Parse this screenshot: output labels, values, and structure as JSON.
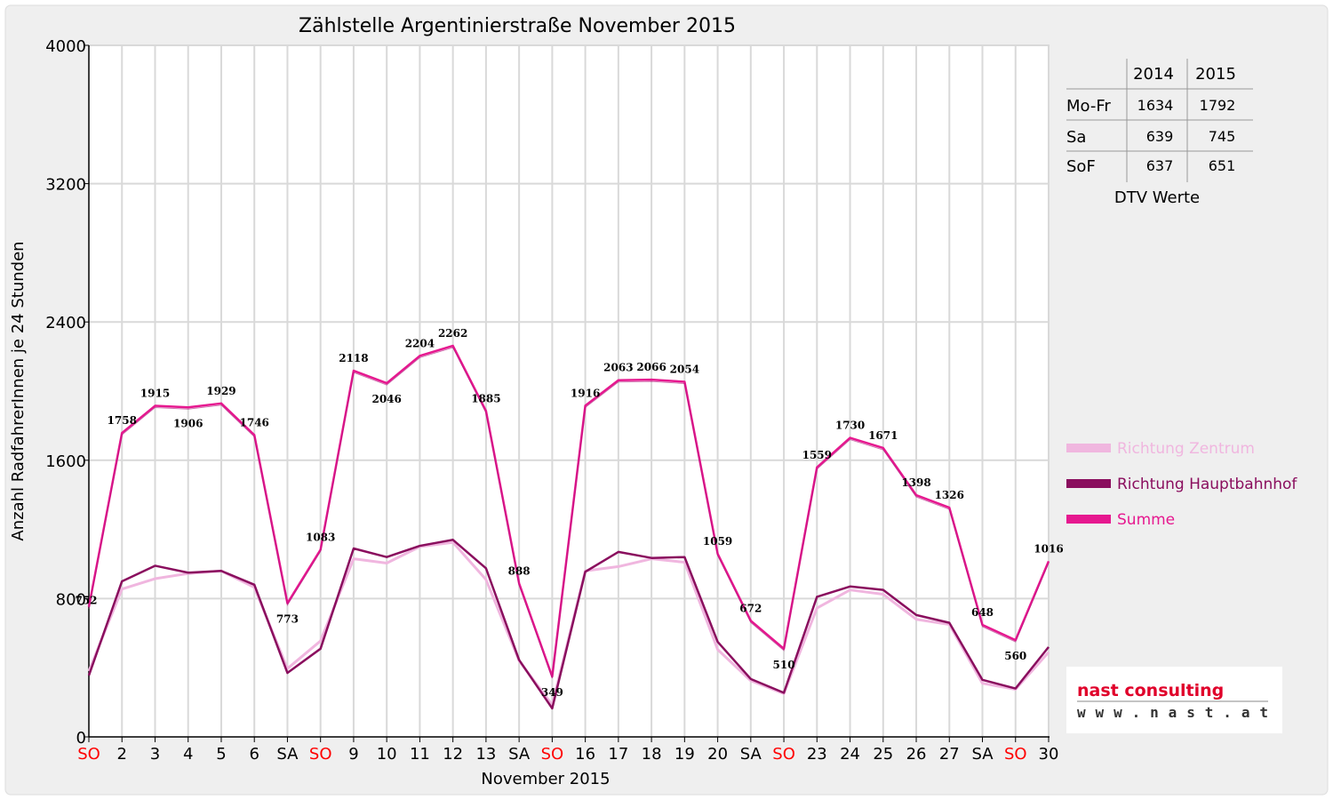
{
  "chart_data": {
    "type": "line",
    "title": "Zählstelle Argentinierstraße November 2015",
    "xlabel": "November 2015",
    "ylabel": "Anzahl RadfahrerInnen je 24 Stunden",
    "ylim": [
      0,
      4000
    ],
    "yticks": [
      "0",
      "800",
      "1600",
      "2400",
      "3200",
      "4000"
    ],
    "ytick_values": [
      0,
      800,
      1600,
      2400,
      3200,
      4000
    ],
    "grid": true,
    "legend_position": "right",
    "categories": [
      "SO",
      "2",
      "3",
      "4",
      "5",
      "6",
      "SA",
      "SO",
      "9",
      "10",
      "11",
      "12",
      "13",
      "SA",
      "SO",
      "16",
      "17",
      "18",
      "19",
      "20",
      "SA",
      "SO",
      "23",
      "24",
      "25",
      "26",
      "27",
      "SA",
      "SO",
      "30"
    ],
    "weekend_flags": [
      true,
      false,
      false,
      false,
      false,
      false,
      false,
      true,
      false,
      false,
      false,
      false,
      false,
      false,
      true,
      false,
      false,
      false,
      false,
      false,
      false,
      true,
      false,
      false,
      false,
      false,
      false,
      false,
      true,
      false
    ],
    "colors": {
      "zentrum": "#f0b6df",
      "hauptbahnhof": "#8a0e5e",
      "summe": "#e6188f",
      "sunday_tick": "#ff0000",
      "tick": "#000000",
      "grid": "#d9d9d9"
    },
    "series": [
      {
        "name": "Richtung Zentrum",
        "key": "zentrum",
        "values": [
          380,
          855,
          915,
          945,
          960,
          865,
          395,
          555,
          1030,
          1005,
          1100,
          1125,
          910,
          440,
          185,
          960,
          985,
          1030,
          1010,
          505,
          325,
          250,
          745,
          850,
          825,
          680,
          650,
          310,
          275,
          490
        ]
      },
      {
        "name": "Richtung Hauptbahnhof",
        "key": "hauptbahnhof",
        "values": [
          355,
          900,
          990,
          950,
          960,
          880,
          370,
          510,
          1090,
          1040,
          1105,
          1140,
          975,
          445,
          165,
          955,
          1070,
          1035,
          1040,
          550,
          335,
          255,
          810,
          870,
          850,
          705,
          660,
          330,
          280,
          520
        ]
      },
      {
        "name": "Summe",
        "key": "summe",
        "values": [
          752,
          1758,
          1915,
          1906,
          1929,
          1746,
          773,
          1083,
          2118,
          2046,
          2204,
          2262,
          1885,
          888,
          349,
          1916,
          2063,
          2066,
          2054,
          1059,
          672,
          510,
          1559,
          1730,
          1671,
          1398,
          1326,
          648,
          560,
          1016
        ],
        "labels": [
          "752",
          "1758",
          "1915",
          "1906",
          "1929",
          "1746",
          "773",
          "1083",
          "2118",
          "2046",
          "2204",
          "2262",
          "1885",
          "888",
          "349",
          "1916",
          "2063",
          "2066",
          "2054",
          "1059",
          "672",
          "510",
          "1559",
          "1730",
          "1671",
          "1398",
          "1326",
          "648",
          "560",
          "1016"
        ]
      }
    ]
  },
  "dtv_table": {
    "caption": "DTV Werte",
    "columns": [
      "2014",
      "2015"
    ],
    "rows": [
      {
        "label": "Mo-Fr",
        "v2014": "1634",
        "v2015": "1792"
      },
      {
        "label": "Sa",
        "v2014": "639",
        "v2015": "745"
      },
      {
        "label": "SoF",
        "v2014": "637",
        "v2015": "651"
      }
    ]
  },
  "logo": {
    "line1": "nast consulting",
    "line2": "www.nast.at",
    "color_text": "#e0002a",
    "color_text2": "#333333"
  }
}
